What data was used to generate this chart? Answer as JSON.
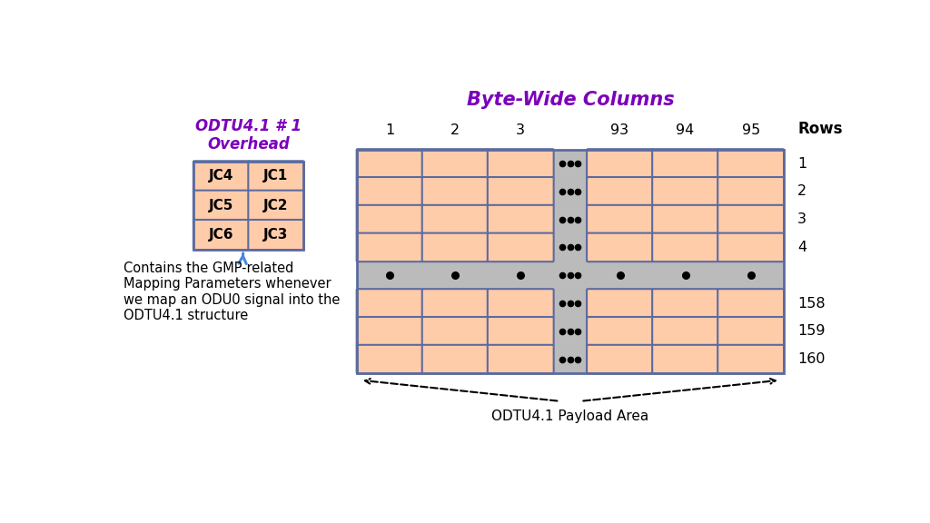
{
  "bg_color": "#ffffff",
  "cell_fill": "#FFCCAA",
  "cell_edge": "#5B6BA0",
  "gray_fill": "#BBBBBB",
  "overhead_title": "ODTU4.1 # 1\nOverhead",
  "overhead_title_color": "#7B00BB",
  "overhead_labels": [
    [
      "JC4",
      "JC1"
    ],
    [
      "JC5",
      "JC2"
    ],
    [
      "JC6",
      "JC3"
    ]
  ],
  "col_labels": [
    "1",
    "2",
    "3",
    "93",
    "94",
    "95"
  ],
  "row_labels": [
    "1",
    "2",
    "3",
    "4",
    "158",
    "159",
    "160"
  ],
  "bytewide_title": "Byte-Wide Columns",
  "bytewide_title_color": "#7B00BB",
  "rows_label": "Rows",
  "annotation_text": "Contains the GMP-related\nMapping Parameters whenever\nwe map an ODU0 signal into the\nODTU4.1 structure",
  "payload_label": "ODTU4.1 Payload Area"
}
